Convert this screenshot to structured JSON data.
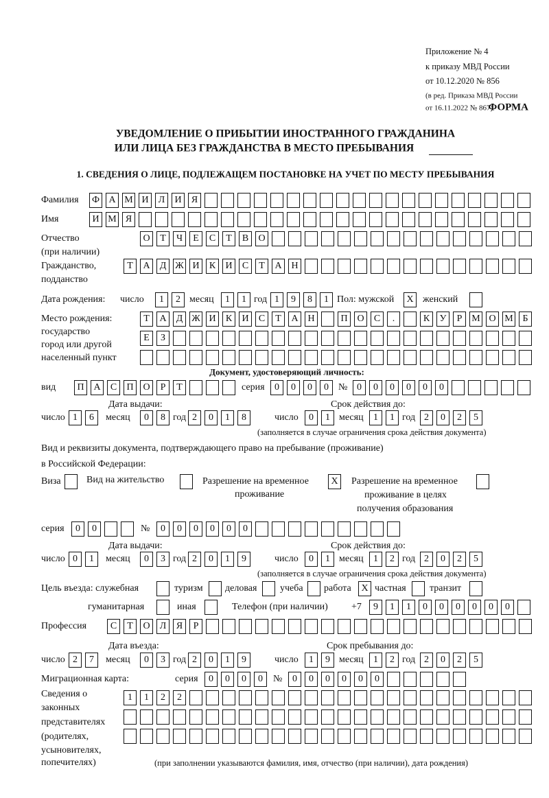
{
  "header": {
    "appendix": "Приложение № 4",
    "order": "к приказу МВД России",
    "order_date": "от 10.12.2020 № 856",
    "edition1": "(в ред. Приказа МВД России",
    "edition2": "от 16.11.2022 № 867)",
    "form_label": "ФОРМА",
    "title1": "УВЕДОМЛЕНИЕ О ПРИБЫТИИ ИНОСТРАННОГО ГРАЖДАНИНА",
    "title2": "ИЛИ ЛИЦА БЕЗ ГРАЖДАНСТВА В МЕСТО ПРЕБЫВАНИЯ",
    "section1": "1. СВЕДЕНИЯ О ЛИЦЕ, ПОДЛЕЖАЩЕМ ПОСТАНОВКЕ НА УЧЕТ ПО МЕСТУ ПРЕБЫВАНИЯ"
  },
  "labels": {
    "surname": "Фамилия",
    "name": "Имя",
    "patronymic": "Отчество",
    "patronymic_note": "(при наличии)",
    "citizenship": "Гражданство,",
    "citizenship2": "подданство",
    "dob": "Дата рождения:",
    "day": "число",
    "month": "месяц",
    "year": "год",
    "sex": "Пол: мужской",
    "female": "женский",
    "pob1": "Место рождения:",
    "pob2": "государство",
    "pob3": "город или другой",
    "pob4": "населенный пункт",
    "id_doc": "Документ, удостоверяющий личность:",
    "kind": "вид",
    "series": "серия",
    "number": "№",
    "issue_date": "Дата выдачи:",
    "valid_until": "Срок действия до:",
    "valid_note": "(заполняется в случае ограничения срока действия документа)",
    "permit_doc1": "Вид и реквизиты документа, подтверждающего право на пребывание (проживание)",
    "permit_doc2": "в Российской Федерации:",
    "visa": "Виза",
    "residence": "Вид на жительство",
    "trp1": "Разрешение на временное",
    "trp2": "проживание",
    "trp_edu1": "Разрешение на временное",
    "trp_edu2": "проживание в целях",
    "trp_edu3": "получения образования",
    "purpose": "Цель въезда: служебная",
    "tourism": "туризм",
    "business": "деловая",
    "study": "учеба",
    "work": "работа",
    "private": "частная",
    "transit": "транзит",
    "humanitarian": "гуманитарная",
    "other": "иная",
    "phone": "Телефон (при наличии)",
    "phone_prefix": "+7",
    "profession": "Профессия",
    "entry_date": "Дата въезда:",
    "stay_until": "Срок пребывания до:",
    "migration_card": "Миграционная карта:",
    "rep1": "Сведения о",
    "rep2": "законных",
    "rep3": "представителях",
    "rep4": "(родителях,",
    "rep5": "усыновителях,",
    "rep6": "попечителях)",
    "rep_note": "(при заполнении указываются фамилия, имя, отчество (при наличии), дата рождения)"
  },
  "fields": {
    "surname": "ФАМИЛИЯ",
    "name": "ИМЯ",
    "patronymic": "ОТЧЕСТВО",
    "citizenship": "ТАДЖИКИСТАН",
    "dob": {
      "day": "12",
      "month": "11",
      "year": "1981"
    },
    "sex_male": "X",
    "sex_female": "",
    "place_of_birth": [
      "ТАДЖИКИСТАН ПОС. КУРМОМБ",
      "ЕЗ",
      ""
    ],
    "id_doc": {
      "kind": "ПАСПОРТ",
      "series": "0000",
      "number": "000000",
      "issue": {
        "day": "16",
        "month": "08",
        "year": "2018"
      },
      "valid": {
        "day": "01",
        "month": "11",
        "year": "2025"
      }
    },
    "permit": {
      "visa": "",
      "residence": "",
      "trp": "X",
      "trp_edu": "",
      "series": "00",
      "number": "000000",
      "issue": {
        "day": "01",
        "month": "03",
        "year": "2019"
      },
      "valid": {
        "day": "01",
        "month": "12",
        "year": "2025"
      }
    },
    "purpose": {
      "official": "",
      "tourism": "",
      "business": "",
      "study": "",
      "work": "X",
      "private": "",
      "transit": "",
      "humanitarian": "",
      "other": ""
    },
    "phone": "911000000",
    "profession": "СТОЛЯР",
    "entry": {
      "day": "27",
      "month": "03",
      "year": "2019"
    },
    "stay_until": {
      "day": "19",
      "month": "12",
      "year": "2025"
    },
    "migration_card": {
      "series": "0000",
      "number": "000000"
    },
    "representatives": [
      "1122",
      "",
      ""
    ]
  }
}
